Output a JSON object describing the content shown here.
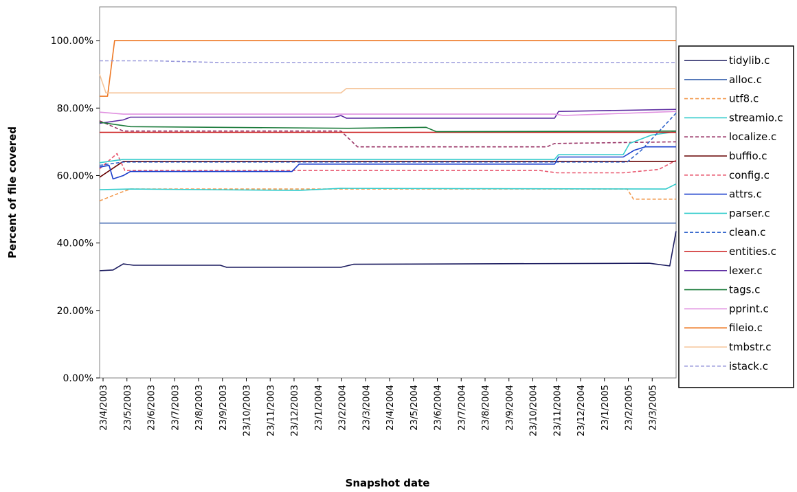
{
  "chart_data": {
    "type": "line",
    "title": "",
    "xlabel": "Snapshot date",
    "ylabel": "Percent of file covered",
    "x_range": [
      "2003-04-23",
      "2005-04-23"
    ],
    "ylim": [
      0,
      110
    ],
    "y_ticks": [
      "0.00%",
      "20.00%",
      "40.00%",
      "60.00%",
      "80.00%",
      "100.00%"
    ],
    "x_ticks": [
      "23/4/2003",
      "23/5/2003",
      "23/6/2003",
      "23/7/2003",
      "23/8/2003",
      "23/9/2003",
      "23/10/2003",
      "23/11/2003",
      "23/12/2003",
      "23/1/2004",
      "23/2/2004",
      "23/3/2004",
      "23/4/2004",
      "23/5/2004",
      "23/6/2004",
      "23/7/2004",
      "23/8/2004",
      "23/9/2004",
      "23/10/2004",
      "23/11/2004",
      "23/12/2004",
      "23/1/2005",
      "23/2/2005",
      "23/3/2005"
    ],
    "grid": false,
    "legend_position": "right",
    "series": [
      {
        "name": "tidylib.c",
        "color": "#1a1a5e",
        "dashed": false,
        "points": [
          [
            "2003-04-23",
            31.8
          ],
          [
            "2003-05-10",
            32.0
          ],
          [
            "2003-05-23",
            33.8
          ],
          [
            "2003-06-05",
            33.4
          ],
          [
            "2003-09-23",
            33.4
          ],
          [
            "2003-10-01",
            32.8
          ],
          [
            "2004-02-23",
            32.8
          ],
          [
            "2004-03-10",
            33.7
          ],
          [
            "2005-03-20",
            34.0
          ],
          [
            "2005-04-15",
            33.2
          ],
          [
            "2005-04-23",
            43.5
          ]
        ]
      },
      {
        "name": "alloc.c",
        "color": "#4a6fb5",
        "dashed": false,
        "points": [
          [
            "2003-04-23",
            45.9
          ],
          [
            "2005-04-23",
            45.9
          ]
        ]
      },
      {
        "name": "utf8.c",
        "color": "#f29a4f",
        "dashed": true,
        "points": [
          [
            "2003-04-23",
            52.5
          ],
          [
            "2003-05-20",
            55.0
          ],
          [
            "2003-06-01",
            56.0
          ],
          [
            "2005-02-20",
            56.0
          ],
          [
            "2005-02-28",
            53.0
          ],
          [
            "2005-04-23",
            53.0
          ]
        ]
      },
      {
        "name": "streamio.c",
        "color": "#33cccc",
        "dashed": false,
        "points": [
          [
            "2003-04-23",
            55.8
          ],
          [
            "2003-06-01",
            56.0
          ],
          [
            "2004-01-01",
            55.6
          ],
          [
            "2004-02-23",
            56.2
          ],
          [
            "2005-04-10",
            56.0
          ],
          [
            "2005-04-23",
            57.5
          ]
        ]
      },
      {
        "name": "localize.c",
        "color": "#993366",
        "dashed": true,
        "points": [
          [
            "2003-04-23",
            76.2
          ],
          [
            "2003-05-23",
            73.2
          ],
          [
            "2004-02-23",
            73.2
          ],
          [
            "2004-03-15",
            68.5
          ],
          [
            "2004-11-10",
            68.5
          ],
          [
            "2004-11-20",
            69.5
          ],
          [
            "2005-04-23",
            70.0
          ]
        ]
      },
      {
        "name": "buffio.c",
        "color": "#660000",
        "dashed": false,
        "points": [
          [
            "2003-04-23",
            59.5
          ],
          [
            "2003-05-23",
            64.2
          ],
          [
            "2005-04-23",
            64.2
          ]
        ]
      },
      {
        "name": "config.c",
        "color": "#e8546c",
        "dashed": true,
        "points": [
          [
            "2003-04-23",
            62.0
          ],
          [
            "2003-05-15",
            66.5
          ],
          [
            "2003-05-25",
            61.5
          ],
          [
            "2004-11-01",
            61.5
          ],
          [
            "2004-11-23",
            60.8
          ],
          [
            "2005-02-15",
            60.8
          ],
          [
            "2005-04-01",
            61.8
          ],
          [
            "2005-04-23",
            64.5
          ]
        ]
      },
      {
        "name": "attrs.c",
        "color": "#1a3fcc",
        "dashed": false,
        "points": [
          [
            "2003-04-23",
            62.5
          ],
          [
            "2003-05-05",
            63.0
          ],
          [
            "2003-05-10",
            59.0
          ],
          [
            "2003-05-23",
            60.0
          ],
          [
            "2003-06-01",
            61.2
          ],
          [
            "2003-12-23",
            61.2
          ],
          [
            "2004-01-01",
            63.4
          ],
          [
            "2004-11-20",
            63.4
          ],
          [
            "2004-11-25",
            65.5
          ],
          [
            "2005-02-15",
            65.5
          ],
          [
            "2005-03-01",
            67.5
          ],
          [
            "2005-03-15",
            68.5
          ],
          [
            "2005-04-23",
            68.5
          ]
        ]
      },
      {
        "name": "parser.c",
        "color": "#33cccc",
        "dashed": false,
        "points": [
          [
            "2003-04-23",
            63.8
          ],
          [
            "2003-05-23",
            64.8
          ],
          [
            "2004-11-20",
            64.8
          ],
          [
            "2004-11-25",
            66.2
          ],
          [
            "2005-02-15",
            66.2
          ],
          [
            "2005-02-23",
            69.5
          ],
          [
            "2005-03-23",
            72.0
          ],
          [
            "2005-04-23",
            73.0
          ]
        ]
      },
      {
        "name": "clean.c",
        "color": "#3366cc",
        "dashed": true,
        "points": [
          [
            "2003-04-23",
            63.0
          ],
          [
            "2003-05-23",
            64.0
          ],
          [
            "2005-02-20",
            64.0
          ],
          [
            "2005-03-10",
            67.5
          ],
          [
            "2005-04-23",
            78.5
          ]
        ]
      },
      {
        "name": "entities.c",
        "color": "#cc1a1a",
        "dashed": false,
        "points": [
          [
            "2003-04-23",
            72.8
          ],
          [
            "2005-04-23",
            72.8
          ]
        ]
      },
      {
        "name": "lexer.c",
        "color": "#5b2aa0",
        "dashed": false,
        "points": [
          [
            "2003-04-23",
            75.5
          ],
          [
            "2003-05-23",
            76.5
          ],
          [
            "2003-06-01",
            77.3
          ],
          [
            "2004-02-15",
            77.3
          ],
          [
            "2004-02-23",
            77.8
          ],
          [
            "2004-03-01",
            77.0
          ],
          [
            "2004-11-20",
            77.0
          ],
          [
            "2004-11-25",
            79.0
          ],
          [
            "2005-04-23",
            79.6
          ]
        ]
      },
      {
        "name": "tags.c",
        "color": "#1a7a3a",
        "dashed": false,
        "points": [
          [
            "2003-04-23",
            75.8
          ],
          [
            "2003-06-01",
            74.5
          ],
          [
            "2004-03-01",
            74.0
          ],
          [
            "2004-06-10",
            74.3
          ],
          [
            "2004-06-23",
            73.0
          ],
          [
            "2005-04-23",
            73.2
          ]
        ]
      },
      {
        "name": "pprint.c",
        "color": "#e090e0",
        "dashed": false,
        "points": [
          [
            "2003-04-23",
            78.8
          ],
          [
            "2003-05-23",
            78.2
          ],
          [
            "2004-02-23",
            78.2
          ],
          [
            "2004-11-20",
            78.2
          ],
          [
            "2004-12-01",
            77.8
          ],
          [
            "2005-04-23",
            79.0
          ]
        ]
      },
      {
        "name": "fileio.c",
        "color": "#ee7722",
        "dashed": false,
        "points": [
          [
            "2003-04-23",
            83.5
          ],
          [
            "2003-05-03",
            83.5
          ],
          [
            "2003-05-12",
            100.0
          ],
          [
            "2005-04-23",
            100.0
          ]
        ]
      },
      {
        "name": "tmbstr.c",
        "color": "#f5c59a",
        "dashed": false,
        "points": [
          [
            "2003-04-23",
            90.0
          ],
          [
            "2003-05-01",
            84.5
          ],
          [
            "2004-02-23",
            84.5
          ],
          [
            "2004-03-01",
            85.8
          ],
          [
            "2005-04-23",
            85.8
          ]
        ]
      },
      {
        "name": "istack.c",
        "color": "#9a9adc",
        "dashed": true,
        "points": [
          [
            "2003-04-23",
            94.0
          ],
          [
            "2003-07-01",
            94.0
          ],
          [
            "2003-09-23",
            93.5
          ],
          [
            "2005-04-23",
            93.5
          ]
        ]
      }
    ]
  }
}
